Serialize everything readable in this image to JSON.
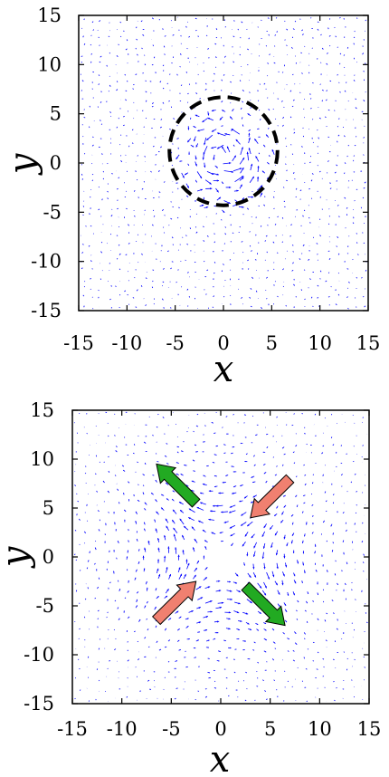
{
  "chart_data": [
    {
      "type": "quiver",
      "panel": "top",
      "xlabel": "x",
      "ylabel": "y",
      "xlim": [
        -15,
        15
      ],
      "ylim": [
        -15,
        15
      ],
      "xticks": [
        "-15",
        "-10",
        "-5",
        "0",
        "5",
        "10",
        "15"
      ],
      "yticks": [
        "15",
        "10",
        "5",
        "0",
        "-5",
        "-10",
        "-15"
      ],
      "field": "short blue arrows on a regular grid; weak random field with a weak swirl around the center",
      "arrow_color": "#0000ff",
      "annotation": {
        "shape": "dashed-circle",
        "center": [
          0,
          1.2
        ],
        "radius": 5.6,
        "color": "#000000"
      }
    },
    {
      "type": "quiver",
      "panel": "bottom",
      "xlabel": "x",
      "ylabel": "y",
      "xlim": [
        -15,
        15
      ],
      "ylim": [
        -15,
        15
      ],
      "xticks": [
        "-15",
        "-10",
        "-5",
        "0",
        "5",
        "10",
        "15"
      ],
      "yticks": [
        "15",
        "10",
        "5",
        "0",
        "-5",
        "-10",
        "-15"
      ],
      "field": "extensional flow: inflow along the diagonal from upper-right and lower-left, outflow toward upper-left and lower-right",
      "arrow_color": "#0000ff",
      "annotations": [
        {
          "shape": "block-arrow",
          "from": [
            -2.5,
            5.5
          ],
          "to": [
            -6.5,
            9.5
          ],
          "color": "#22aa22"
        },
        {
          "shape": "block-arrow",
          "from": [
            2.5,
            -3
          ],
          "to": [
            6.5,
            -7
          ],
          "color": "#22aa22"
        },
        {
          "shape": "block-arrow",
          "from": [
            7,
            8
          ],
          "to": [
            3,
            4
          ],
          "color": "#f08070"
        },
        {
          "shape": "block-arrow",
          "from": [
            -6.5,
            -6.5
          ],
          "to": [
            -2.5,
            -2.5
          ],
          "color": "#f08070"
        }
      ]
    }
  ]
}
